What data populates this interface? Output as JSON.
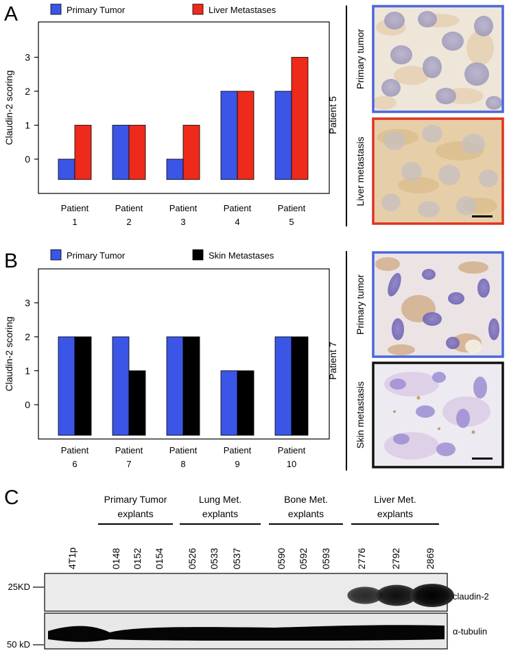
{
  "panels": {
    "a": {
      "letter": "A",
      "legend": [
        "Primary Tumor",
        "Liver Metastases"
      ],
      "side_label": "Patient 5",
      "image_labels": [
        "Primary tumor",
        "Liver metastasis"
      ]
    },
    "b": {
      "letter": "B",
      "legend": [
        "Primary Tumor",
        "Skin Metastases"
      ],
      "side_label": "Patient 7",
      "image_labels": [
        "Primary tumor",
        "Skin metastasis"
      ]
    },
    "c": {
      "letter": "C",
      "groups": [
        {
          "line1": "Primary Tumor",
          "line2": "explants"
        },
        {
          "line1": "Lung Met.",
          "line2": "explants"
        },
        {
          "line1": "Bone Met.",
          "line2": "explants"
        },
        {
          "line1": "Liver Met.",
          "line2": "explants"
        }
      ],
      "lanes": [
        "4T1p",
        "0148",
        "0152",
        "0154",
        "0526",
        "0533",
        "0537",
        "0590",
        "0592",
        "0593",
        "2776",
        "2792",
        "2869"
      ],
      "size_markers": [
        "25KD",
        "50 kD"
      ],
      "band_labels": [
        "claudin-2",
        "α-tubulin"
      ],
      "claudin2_band_intensity": [
        0,
        0,
        0,
        0,
        0,
        0,
        0,
        0,
        0,
        0,
        0.6,
        0.85,
        1.0
      ]
    }
  },
  "colors": {
    "primary": "#3b55e6",
    "liver": "#ee2a1b",
    "skin": "#000000",
    "frame_blue": "#4a66dd",
    "frame_red": "#e0321f",
    "frame_black": "#111111"
  },
  "chart_data": [
    {
      "type": "bar",
      "categories": [
        "Patient\n1",
        "Patient\n2",
        "Patient\n3",
        "Patient\n4",
        "Patient\n5"
      ],
      "series": [
        {
          "name": "Primary Tumor",
          "values": [
            0,
            1,
            0,
            2,
            2
          ]
        },
        {
          "name": "Liver Metastases",
          "values": [
            1,
            1,
            1,
            2,
            3
          ]
        }
      ],
      "title": "",
      "xlabel": "",
      "ylabel": "Claudin-2 scoring",
      "yticks": [
        0,
        1,
        2,
        3
      ],
      "ylim": [
        -1,
        4
      ],
      "legend": "top"
    },
    {
      "type": "bar",
      "categories": [
        "Patient\n6",
        "Patient\n7",
        "Patient\n8",
        "Patient\n9",
        "Patient\n10"
      ],
      "series": [
        {
          "name": "Primary Tumor",
          "values": [
            2,
            2,
            2,
            1,
            2
          ]
        },
        {
          "name": "Skin Metastases",
          "values": [
            2,
            1,
            2,
            1,
            2
          ]
        }
      ],
      "title": "",
      "xlabel": "",
      "ylabel": "Claudin-2 scoring",
      "yticks": [
        0,
        1,
        2,
        3
      ],
      "ylim": [
        -1,
        4
      ],
      "legend": "top"
    }
  ]
}
